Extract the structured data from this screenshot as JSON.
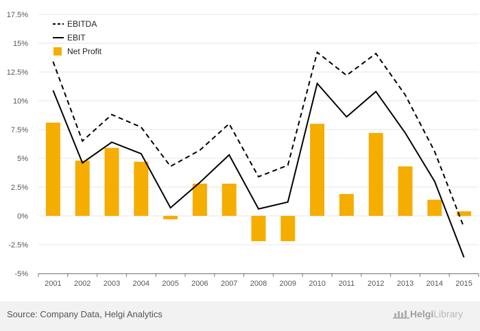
{
  "chart_data": {
    "type": "bar",
    "categories": [
      "2001",
      "2002",
      "2003",
      "2004",
      "2005",
      "2006",
      "2007",
      "2008",
      "2009",
      "2010",
      "2011",
      "2012",
      "2013",
      "2014",
      "2015"
    ],
    "series": [
      {
        "name": "EBITDA",
        "type": "line",
        "style": "dashed",
        "color": "#000000",
        "values": [
          13.4,
          6.5,
          8.8,
          7.7,
          4.3,
          5.7,
          8.0,
          3.4,
          4.4,
          14.2,
          12.2,
          14.1,
          10.5,
          5.6,
          -1.0
        ]
      },
      {
        "name": "EBIT",
        "type": "line",
        "style": "solid",
        "color": "#000000",
        "values": [
          10.9,
          4.6,
          6.4,
          5.4,
          0.7,
          2.9,
          5.3,
          0.6,
          1.2,
          11.5,
          8.6,
          10.8,
          7.2,
          3.0,
          -3.6
        ]
      },
      {
        "name": "Net Profit",
        "type": "bar",
        "color": "#f5ad00",
        "values": [
          8.1,
          4.8,
          5.9,
          4.7,
          -0.3,
          2.8,
          2.8,
          -2.2,
          -2.2,
          8.0,
          1.9,
          7.2,
          4.3,
          1.4,
          0.4
        ]
      }
    ],
    "y_ticks": [
      "17.5%",
      "15%",
      "12.5%",
      "10%",
      "7.5%",
      "5%",
      "2.5%",
      "0%",
      "-2.5%",
      "-5%"
    ],
    "ylim": [
      -5,
      17.5
    ],
    "grid": true,
    "legend_position": "top-left",
    "title": "",
    "xlabel": "",
    "ylabel": ""
  },
  "footer": {
    "source": "Source: Company Data, Helgi Analytics",
    "brand_bold": "Helgi",
    "brand_light": "Library"
  },
  "colors": {
    "bar": "#f5ad00",
    "grid": "#e4e4e4",
    "footer_bg": "#f2f2f2"
  }
}
